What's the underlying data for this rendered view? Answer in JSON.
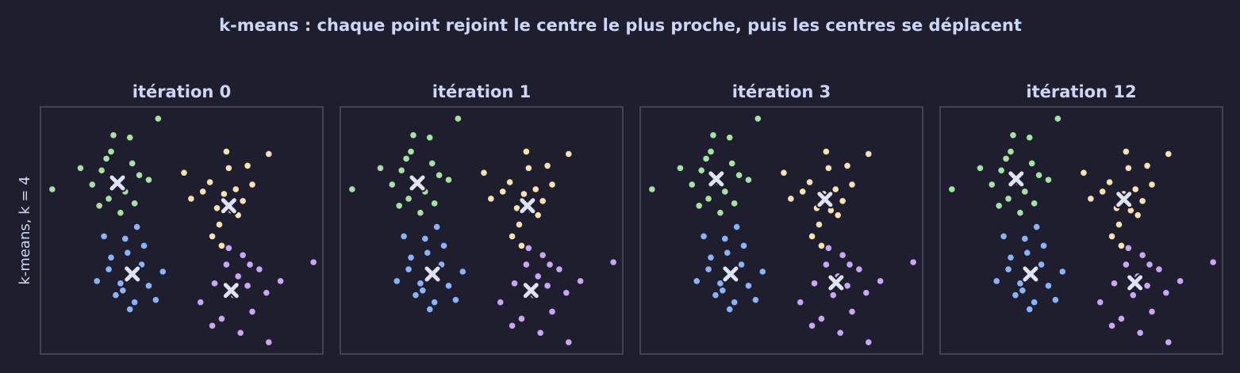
{
  "title": "k-means : chaque point rejoint le centre le plus proche, puis les centres se déplacent",
  "chart_data": [
    {
      "type": "scatter",
      "title": "itération 0",
      "ylabel": "k-means, k = 4",
      "xlim": [
        0,
        12
      ],
      "ylim": [
        0,
        10.5
      ],
      "series": [
        {
          "color": "#a6e3a1",
          "x": [
            3.3,
            2.6,
            3.9,
            2.9,
            3.6,
            4.2,
            2.2,
            3.0,
            3.8,
            1.7,
            4.6,
            2.5,
            3.4,
            3.1,
            4.0,
            0.5,
            2.8,
            5.0
          ],
          "values": [
            7.3,
            7.8,
            8.1,
            6.6,
            6.9,
            7.6,
            7.2,
            8.6,
            9.2,
            7.9,
            7.4,
            6.3,
            6.0,
            9.3,
            6.4,
            7.0,
            8.3,
            10.0
          ]
        },
        {
          "color": "#f9e2af",
          "x": [
            7.8,
            7.2,
            8.3,
            7.5,
            8.6,
            6.9,
            8.0,
            7.6,
            9.0,
            6.4,
            8.4,
            7.9,
            7.3,
            8.8,
            9.7,
            6.1,
            7.7,
            8.1
          ],
          "values": [
            6.8,
            7.3,
            7.0,
            6.2,
            6.5,
            6.9,
            7.9,
            5.5,
            7.2,
            6.6,
            5.9,
            8.6,
            5.0,
            8.0,
            8.5,
            7.7,
            4.6,
            6.1
          ]
        },
        {
          "color": "#89b4fa",
          "x": [
            3.9,
            3.4,
            4.3,
            3.7,
            2.9,
            4.6,
            3.2,
            4.0,
            3.6,
            2.4,
            5.2,
            4.4,
            3.0,
            3.8,
            4.9,
            2.7,
            4.1,
            3.5
          ],
          "values": [
            3.4,
            3.0,
            3.8,
            4.3,
            3.6,
            2.9,
            2.5,
            2.2,
            4.9,
            3.1,
            3.5,
            4.6,
            4.1,
            1.9,
            2.3,
            5.0,
            5.4,
            2.7
          ]
        },
        {
          "color": "#cba6f7",
          "x": [
            8.4,
            7.9,
            8.8,
            8.2,
            9.3,
            7.4,
            8.6,
            9.0,
            7.7,
            10.2,
            8.0,
            6.8,
            9.6,
            8.5,
            11.6,
            9.7,
            7.3,
            8.9
          ],
          "values": [
            3.3,
            3.8,
            2.9,
            2.5,
            3.6,
            3.0,
            4.2,
            1.8,
            1.5,
            3.1,
            4.5,
            2.2,
            2.6,
            0.9,
            3.9,
            0.5,
            1.2,
            3.8
          ]
        }
      ],
      "centroids": {
        "color": "#dfe3f5",
        "x": [
          3.27,
          8.0,
          3.9,
          8.1
        ],
        "values": [
          7.27,
          6.3,
          3.4,
          2.7
        ]
      }
    },
    {
      "type": "scatter",
      "title": "itération 1",
      "xlim": [
        0,
        12
      ],
      "ylim": [
        0,
        10.5
      ],
      "series": [
        {
          "color": "#a6e3a1",
          "x": [
            3.3,
            2.6,
            3.9,
            2.9,
            3.6,
            4.2,
            2.2,
            3.0,
            3.8,
            1.7,
            4.6,
            2.5,
            3.4,
            3.1,
            4.0,
            0.5,
            2.8,
            5.0
          ],
          "values": [
            7.3,
            7.8,
            8.1,
            6.6,
            6.9,
            7.6,
            7.2,
            8.6,
            9.2,
            7.9,
            7.4,
            6.3,
            6.0,
            9.3,
            6.4,
            7.0,
            8.3,
            10.0
          ]
        },
        {
          "color": "#f9e2af",
          "x": [
            7.8,
            7.2,
            8.3,
            7.5,
            8.6,
            6.9,
            8.0,
            7.6,
            9.0,
            6.4,
            8.4,
            7.9,
            7.3,
            8.8,
            9.7,
            6.1,
            7.7,
            8.1
          ],
          "values": [
            6.8,
            7.3,
            7.0,
            6.2,
            6.5,
            6.9,
            7.9,
            5.5,
            7.2,
            6.6,
            5.9,
            8.6,
            5.0,
            8.0,
            8.5,
            7.7,
            4.6,
            6.1
          ]
        },
        {
          "color": "#89b4fa",
          "x": [
            3.9,
            3.4,
            4.3,
            3.7,
            2.9,
            4.6,
            3.2,
            4.0,
            3.6,
            2.4,
            5.2,
            4.4,
            3.0,
            3.8,
            4.9,
            2.7,
            4.1,
            3.5
          ],
          "values": [
            3.4,
            3.0,
            3.8,
            4.3,
            3.6,
            2.9,
            2.5,
            2.2,
            4.9,
            3.1,
            3.5,
            4.6,
            4.1,
            1.9,
            2.3,
            5.0,
            5.4,
            2.7
          ]
        },
        {
          "color": "#cba6f7",
          "x": [
            8.4,
            7.9,
            8.8,
            8.2,
            9.3,
            7.4,
            8.6,
            9.0,
            7.7,
            10.2,
            8.0,
            6.8,
            9.6,
            8.5,
            11.6,
            9.7,
            7.3,
            8.9
          ],
          "values": [
            3.3,
            3.8,
            2.9,
            2.5,
            3.6,
            3.0,
            4.2,
            1.8,
            1.5,
            3.1,
            4.5,
            2.2,
            2.6,
            0.9,
            3.9,
            0.5,
            1.2,
            3.8
          ]
        }
      ],
      "centroids": {
        "color": "#dfe3f5",
        "x": [
          3.27,
          7.95,
          3.91,
          8.1
        ],
        "values": [
          7.27,
          6.3,
          3.4,
          2.7
        ]
      }
    },
    {
      "type": "scatter",
      "title": "itération 3",
      "xlim": [
        0,
        12
      ],
      "ylim": [
        0,
        10.5
      ],
      "series": [
        {
          "color": "#a6e3a1",
          "x": [
            3.3,
            2.6,
            3.9,
            2.9,
            3.6,
            4.2,
            2.2,
            3.0,
            3.8,
            1.7,
            4.6,
            2.5,
            3.4,
            3.1,
            4.0,
            0.5,
            2.8,
            5.0
          ],
          "values": [
            7.3,
            7.8,
            8.1,
            6.6,
            6.9,
            7.6,
            7.2,
            8.6,
            9.2,
            7.9,
            7.4,
            6.3,
            6.0,
            9.3,
            6.4,
            7.0,
            8.3,
            10.0
          ]
        },
        {
          "color": "#f9e2af",
          "x": [
            7.8,
            7.2,
            8.3,
            7.5,
            8.6,
            6.9,
            8.0,
            7.6,
            9.0,
            6.4,
            8.4,
            7.9,
            7.3,
            8.8,
            9.7,
            6.1,
            7.7,
            8.1
          ],
          "values": [
            6.8,
            7.3,
            7.0,
            6.2,
            6.5,
            6.9,
            7.9,
            5.5,
            7.2,
            6.6,
            5.9,
            8.6,
            5.0,
            8.0,
            8.5,
            7.7,
            4.6,
            6.1
          ]
        },
        {
          "color": "#89b4fa",
          "x": [
            3.9,
            3.4,
            4.3,
            3.7,
            2.9,
            4.6,
            3.2,
            4.0,
            3.6,
            2.4,
            5.2,
            4.4,
            3.0,
            3.8,
            4.9,
            2.7,
            4.1,
            3.5
          ],
          "values": [
            3.4,
            3.0,
            3.8,
            4.3,
            3.6,
            2.9,
            2.5,
            2.2,
            4.9,
            3.1,
            3.5,
            4.6,
            4.1,
            1.9,
            2.3,
            5.0,
            5.4,
            2.7
          ]
        },
        {
          "color": "#cba6f7",
          "x": [
            8.4,
            7.9,
            8.8,
            8.2,
            9.3,
            7.4,
            8.6,
            9.0,
            7.7,
            10.2,
            8.0,
            6.8,
            9.6,
            8.5,
            11.6,
            9.7,
            7.3,
            8.9
          ],
          "values": [
            3.3,
            3.8,
            2.9,
            2.5,
            3.6,
            3.0,
            4.2,
            1.8,
            1.5,
            3.1,
            4.5,
            2.2,
            2.6,
            0.9,
            3.9,
            0.5,
            1.2,
            3.8
          ]
        }
      ],
      "centroids": {
        "color": "#dfe3f5",
        "x": [
          3.23,
          7.85,
          3.84,
          8.32
        ],
        "values": [
          7.44,
          6.57,
          3.4,
          3.03
        ]
      }
    },
    {
      "type": "scatter",
      "title": "itération 12",
      "xlim": [
        0,
        12
      ],
      "ylim": [
        0,
        10.5
      ],
      "series": [
        {
          "color": "#a6e3a1",
          "x": [
            3.3,
            2.6,
            3.9,
            2.9,
            3.6,
            4.2,
            2.2,
            3.0,
            3.8,
            1.7,
            4.6,
            2.5,
            3.4,
            3.1,
            4.0,
            0.5,
            2.8,
            5.0
          ],
          "values": [
            7.3,
            7.8,
            8.1,
            6.6,
            6.9,
            7.6,
            7.2,
            8.6,
            9.2,
            7.9,
            7.4,
            6.3,
            6.0,
            9.3,
            6.4,
            7.0,
            8.3,
            10.0
          ]
        },
        {
          "color": "#f9e2af",
          "x": [
            7.8,
            7.2,
            8.3,
            7.5,
            8.6,
            6.9,
            8.0,
            7.6,
            9.0,
            6.4,
            8.4,
            7.9,
            7.3,
            8.8,
            9.7,
            6.1,
            7.7,
            8.1
          ],
          "values": [
            6.8,
            7.3,
            7.0,
            6.2,
            6.5,
            6.9,
            7.9,
            5.5,
            7.2,
            6.6,
            5.9,
            8.6,
            5.0,
            8.0,
            8.5,
            7.7,
            4.6,
            6.1
          ]
        },
        {
          "color": "#89b4fa",
          "x": [
            3.9,
            3.4,
            4.3,
            3.7,
            2.9,
            4.6,
            3.2,
            4.0,
            3.6,
            2.4,
            5.2,
            4.4,
            3.0,
            3.8,
            4.9,
            2.7,
            4.1,
            3.5
          ],
          "values": [
            3.4,
            3.0,
            3.8,
            4.3,
            3.6,
            2.9,
            2.5,
            2.2,
            4.9,
            3.1,
            3.5,
            4.6,
            4.1,
            1.9,
            2.3,
            5.0,
            5.4,
            2.7
          ]
        },
        {
          "color": "#cba6f7",
          "x": [
            8.4,
            7.9,
            8.8,
            8.2,
            9.3,
            7.4,
            8.6,
            9.0,
            7.7,
            10.2,
            8.0,
            6.8,
            9.6,
            8.5,
            11.6,
            9.7,
            7.3,
            8.9
          ],
          "values": [
            3.3,
            3.8,
            2.9,
            2.5,
            3.6,
            3.0,
            4.2,
            1.8,
            1.5,
            3.1,
            4.5,
            2.2,
            2.6,
            0.9,
            3.9,
            0.5,
            1.2,
            3.8
          ]
        }
      ],
      "centroids": {
        "color": "#dfe3f5",
        "x": [
          3.23,
          7.81,
          3.84,
          8.28
        ],
        "values": [
          7.44,
          6.57,
          3.4,
          3.03
        ]
      }
    }
  ]
}
